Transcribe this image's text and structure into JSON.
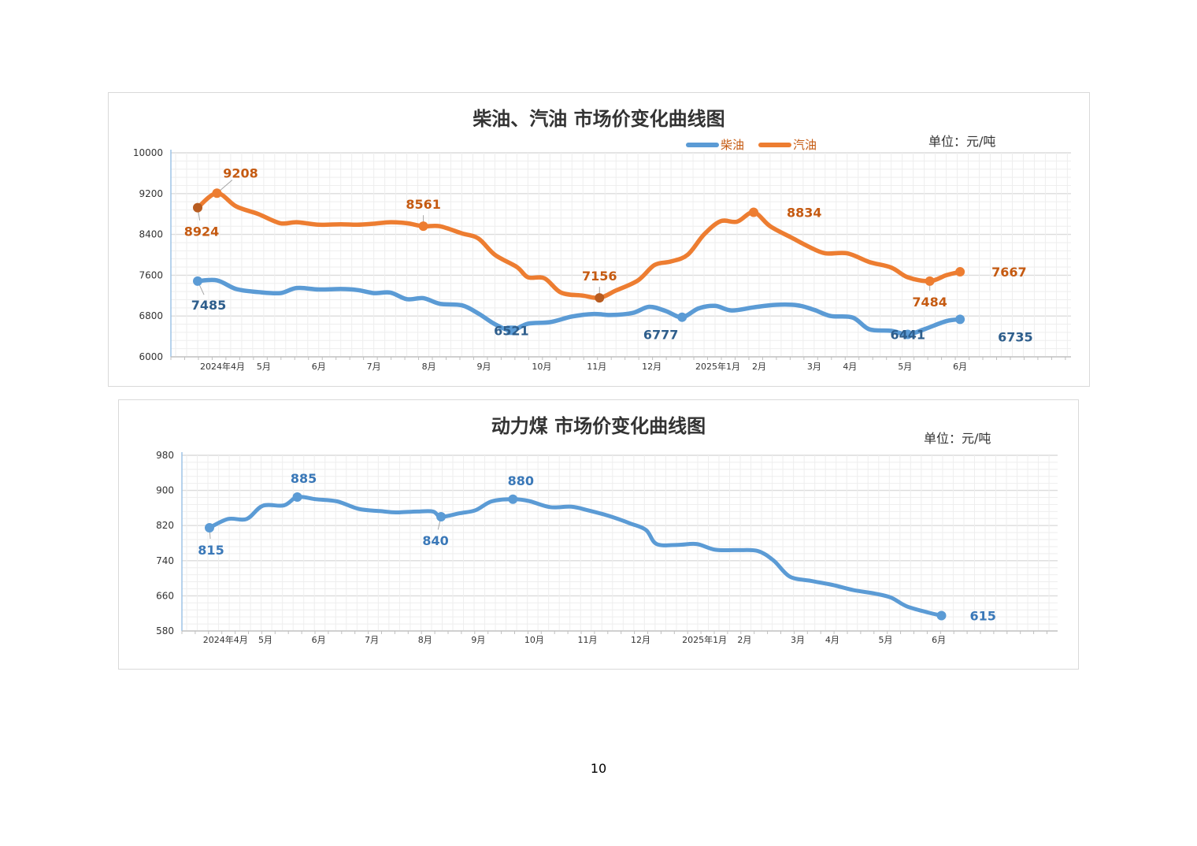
{
  "page_number": "10",
  "chart_data": [
    {
      "type": "line",
      "title": "柴油、汽油  市场价变化曲线图",
      "unit": "单位：元/吨",
      "ylim": [
        6000,
        10000
      ],
      "yticks": [
        6000,
        6800,
        7600,
        8400,
        9200,
        10000
      ],
      "x_tick_labels": [
        {
          "label": "2024年4月",
          "x": 0.45
        },
        {
          "label": "5月",
          "x": 1.2
        },
        {
          "label": "6月",
          "x": 2.2
        },
        {
          "label": "7月",
          "x": 3.2
        },
        {
          "label": "8月",
          "x": 4.2
        },
        {
          "label": "9月",
          "x": 5.2
        },
        {
          "label": "10月",
          "x": 6.25
        },
        {
          "label": "11月",
          "x": 7.25
        },
        {
          "label": "12月",
          "x": 8.25
        },
        {
          "label": "2025年1月",
          "x": 9.45
        },
        {
          "label": "2月",
          "x": 10.2
        },
        {
          "label": "3月",
          "x": 11.2
        },
        {
          "label": "4月",
          "x": 11.85
        },
        {
          "label": "5月",
          "x": 12.85
        },
        {
          "label": "6月",
          "x": 13.85
        }
      ],
      "grid": true,
      "legend": "top-right",
      "series": [
        {
          "name": "柴油",
          "color": "#5b9bd5",
          "label_color": "#2e5e8c",
          "points": [
            [
              0.0,
              7485
            ],
            [
              0.35,
              7500
            ],
            [
              0.7,
              7330
            ],
            [
              1.1,
              7270
            ],
            [
              1.5,
              7250
            ],
            [
              1.8,
              7350
            ],
            [
              2.2,
              7320
            ],
            [
              2.6,
              7330
            ],
            [
              2.9,
              7310
            ],
            [
              3.2,
              7250
            ],
            [
              3.5,
              7260
            ],
            [
              3.8,
              7130
            ],
            [
              4.1,
              7150
            ],
            [
              4.4,
              7040
            ],
            [
              4.8,
              7010
            ],
            [
              5.1,
              6850
            ],
            [
              5.4,
              6640
            ],
            [
              5.7,
              6521
            ],
            [
              6.0,
              6650
            ],
            [
              6.4,
              6680
            ],
            [
              6.8,
              6790
            ],
            [
              7.2,
              6840
            ],
            [
              7.5,
              6820
            ],
            [
              7.9,
              6860
            ],
            [
              8.2,
              6980
            ],
            [
              8.5,
              6900
            ],
            [
              8.8,
              6777
            ],
            [
              9.1,
              6950
            ],
            [
              9.4,
              7000
            ],
            [
              9.7,
              6910
            ],
            [
              10.1,
              6970
            ],
            [
              10.5,
              7020
            ],
            [
              10.9,
              7010
            ],
            [
              11.2,
              6920
            ],
            [
              11.5,
              6800
            ],
            [
              11.9,
              6770
            ],
            [
              12.2,
              6540
            ],
            [
              12.6,
              6510
            ],
            [
              12.9,
              6441
            ],
            [
              13.2,
              6540
            ],
            [
              13.6,
              6700
            ],
            [
              13.85,
              6735
            ]
          ],
          "labels": [
            {
              "x": 0.0,
              "y": 7485,
              "text": "7485"
            },
            {
              "x": 5.7,
              "y": 6521,
              "text": "6521"
            },
            {
              "x": 8.8,
              "y": 6777,
              "text": "6777"
            },
            {
              "x": 12.9,
              "y": 6441,
              "text": "6441"
            },
            {
              "x": 13.85,
              "y": 6735,
              "text": "6735"
            }
          ]
        },
        {
          "name": "汽油",
          "color": "#ed7d31",
          "label_color": "#c55a11",
          "points": [
            [
              0.0,
              8924
            ],
            [
              0.35,
              9208
            ],
            [
              0.7,
              8950
            ],
            [
              1.1,
              8800
            ],
            [
              1.5,
              8620
            ],
            [
              1.8,
              8640
            ],
            [
              2.2,
              8590
            ],
            [
              2.6,
              8600
            ],
            [
              2.9,
              8590
            ],
            [
              3.2,
              8610
            ],
            [
              3.5,
              8640
            ],
            [
              3.8,
              8620
            ],
            [
              4.1,
              8561
            ],
            [
              4.4,
              8560
            ],
            [
              4.8,
              8420
            ],
            [
              5.1,
              8320
            ],
            [
              5.4,
              8000
            ],
            [
              5.8,
              7760
            ],
            [
              6.0,
              7560
            ],
            [
              6.3,
              7540
            ],
            [
              6.6,
              7260
            ],
            [
              7.0,
              7200
            ],
            [
              7.3,
              7156
            ],
            [
              7.6,
              7300
            ],
            [
              8.0,
              7500
            ],
            [
              8.3,
              7800
            ],
            [
              8.6,
              7870
            ],
            [
              8.9,
              8000
            ],
            [
              9.2,
              8400
            ],
            [
              9.5,
              8660
            ],
            [
              9.8,
              8650
            ],
            [
              10.1,
              8834
            ],
            [
              10.4,
              8560
            ],
            [
              10.8,
              8330
            ],
            [
              11.1,
              8160
            ],
            [
              11.4,
              8030
            ],
            [
              11.8,
              8030
            ],
            [
              12.2,
              7860
            ],
            [
              12.6,
              7750
            ],
            [
              12.9,
              7560
            ],
            [
              13.3,
              7484
            ],
            [
              13.6,
              7600
            ],
            [
              13.85,
              7667
            ]
          ],
          "labels": [
            {
              "x": 0.0,
              "y": 8924,
              "text": "8924"
            },
            {
              "x": 0.35,
              "y": 9208,
              "text": "9208"
            },
            {
              "x": 4.1,
              "y": 8561,
              "text": "8561"
            },
            {
              "x": 7.3,
              "y": 7156,
              "text": "7156"
            },
            {
              "x": 10.1,
              "y": 8834,
              "text": "8834"
            },
            {
              "x": 13.3,
              "y": 7484,
              "text": "7484"
            },
            {
              "x": 13.85,
              "y": 7667,
              "text": "7667"
            }
          ]
        }
      ]
    },
    {
      "type": "line",
      "title": "动力煤  市场价变化曲线图",
      "unit": "单位：元/吨",
      "ylim": [
        580,
        980
      ],
      "yticks": [
        580,
        660,
        740,
        820,
        900,
        980
      ],
      "x_tick_labels": [
        {
          "label": "2024年4月",
          "x": 0.3
        },
        {
          "label": "5月",
          "x": 1.05
        },
        {
          "label": "6月",
          "x": 2.05
        },
        {
          "label": "7月",
          "x": 3.05
        },
        {
          "label": "8月",
          "x": 4.05
        },
        {
          "label": "9月",
          "x": 5.05
        },
        {
          "label": "10月",
          "x": 6.1
        },
        {
          "label": "11月",
          "x": 7.1
        },
        {
          "label": "12月",
          "x": 8.1
        },
        {
          "label": "2025年1月",
          "x": 9.3
        },
        {
          "label": "2月",
          "x": 10.05
        },
        {
          "label": "3月",
          "x": 11.05
        },
        {
          "label": "4月",
          "x": 11.7
        },
        {
          "label": "5月",
          "x": 12.7
        },
        {
          "label": "6月",
          "x": 13.7
        }
      ],
      "grid": true,
      "legend": "none",
      "series": [
        {
          "name": "",
          "color": "#5b9bd5",
          "label_color": "#3a78b8",
          "points": [
            [
              0.0,
              815
            ],
            [
              0.35,
              835
            ],
            [
              0.7,
              835
            ],
            [
              1.0,
              865
            ],
            [
              1.4,
              866
            ],
            [
              1.65,
              885
            ],
            [
              2.0,
              880
            ],
            [
              2.4,
              875
            ],
            [
              2.8,
              858
            ],
            [
              3.2,
              853
            ],
            [
              3.5,
              850
            ],
            [
              3.9,
              852
            ],
            [
              4.2,
              852
            ],
            [
              4.35,
              840
            ],
            [
              4.7,
              848
            ],
            [
              5.0,
              855
            ],
            [
              5.3,
              875
            ],
            [
              5.7,
              880
            ],
            [
              6.0,
              876
            ],
            [
              6.4,
              862
            ],
            [
              6.8,
              863
            ],
            [
              7.1,
              855
            ],
            [
              7.5,
              842
            ],
            [
              7.9,
              825
            ],
            [
              8.2,
              810
            ],
            [
              8.4,
              778
            ],
            [
              8.8,
              776
            ],
            [
              9.15,
              778
            ],
            [
              9.5,
              765
            ],
            [
              9.9,
              764
            ],
            [
              10.3,
              762
            ],
            [
              10.6,
              740
            ],
            [
              10.9,
              704
            ],
            [
              11.3,
              694
            ],
            [
              11.7,
              685
            ],
            [
              12.1,
              673
            ],
            [
              12.5,
              665
            ],
            [
              12.8,
              656
            ],
            [
              13.1,
              636
            ],
            [
              13.5,
              622
            ],
            [
              13.75,
              615
            ]
          ],
          "labels": [
            {
              "x": 0.0,
              "y": 815,
              "text": "815"
            },
            {
              "x": 1.65,
              "y": 885,
              "text": "885"
            },
            {
              "x": 4.35,
              "y": 840,
              "text": "840"
            },
            {
              "x": 5.7,
              "y": 880,
              "text": "880"
            },
            {
              "x": 13.75,
              "y": 615,
              "text": "615"
            }
          ]
        }
      ]
    }
  ]
}
